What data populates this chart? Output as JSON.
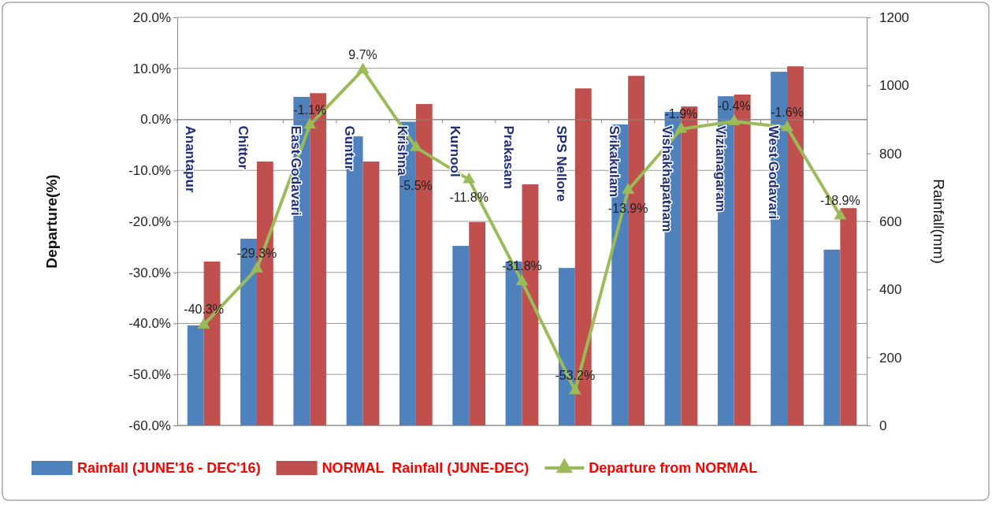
{
  "chart_data": {
    "type": "bar",
    "categories": [
      "Anantapur",
      "Chittor",
      "East Godavari",
      "Guntur",
      "Krishna",
      "Kurnool",
      "Prakasam",
      "SPS Nellore",
      "Srikakulam",
      "Vishakhapatnam",
      "Vizianagaram",
      "West Godavari",
      null
    ],
    "series": [
      {
        "name": "Rainfall (JUNE'16 - DEC'16)",
        "axis": "y2",
        "color": "#4f81bd",
        "values": [
          294,
          549,
          966,
          850,
          893,
          528,
          482,
          463,
          885,
          922,
          968,
          1040,
          517
        ]
      },
      {
        "name": "NORMAL  Rainfall (JUNE-DEC)",
        "axis": "y2",
        "color": "#c0504d",
        "values": [
          482,
          776,
          977,
          776,
          945,
          598,
          709,
          991,
          1028,
          938,
          973,
          1056,
          639
        ]
      },
      {
        "name": "Departure from NORMAL",
        "type": "line",
        "color": "#9bbb59",
        "marker": "triangle",
        "values": [
          -40.3,
          -29.3,
          -1.1,
          9.7,
          -5.5,
          -11.8,
          -31.8,
          -53.2,
          -13.9,
          -1.9,
          -0.4,
          -1.6,
          -18.9
        ],
        "value_labels": [
          "-40.3%",
          "-29.3%",
          "-1.1%",
          "9.7%",
          "-5.5%",
          "-11.8%",
          "-31.8%",
          "-53.2%",
          "-13.9%",
          "-1.9%",
          "-0.4%",
          "-1.6%",
          "-18.9%"
        ]
      }
    ],
    "ylabel": "Departure(%)",
    "y2label": "Rainfall(mm)",
    "ylim": [
      -60,
      20
    ],
    "yticks": [
      {
        "value": -60,
        "label": "-60.0%"
      },
      {
        "value": -50,
        "label": "-50.0%"
      },
      {
        "value": -40,
        "label": "-40.0%"
      },
      {
        "value": -30,
        "label": "-30.0%"
      },
      {
        "value": -20,
        "label": "-20.0%"
      },
      {
        "value": -10,
        "label": "-10.0%"
      },
      {
        "value": 0,
        "label": "0.0%"
      },
      {
        "value": 10,
        "label": "10.0%"
      },
      {
        "value": 20,
        "label": "20.0%"
      }
    ],
    "y2lim": [
      0,
      1200
    ],
    "y2ticks": [
      0,
      200,
      400,
      600,
      800,
      1000,
      1200
    ],
    "grid": "y",
    "legend": "bottom"
  }
}
